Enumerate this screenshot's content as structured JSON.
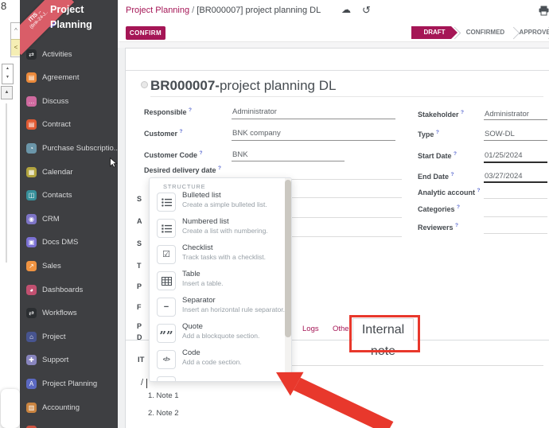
{
  "app": {
    "ribbon_line1": "ITIS ..",
    "ribbon_line2": "(Bnk-24-J..",
    "title_line1": "Project",
    "title_line2": "Planning"
  },
  "sidebar": {
    "items": [
      {
        "label": "Activities",
        "icon": "shuffle-icon",
        "color": "#2b2e31",
        "glyph": "⇄"
      },
      {
        "label": "Agreement",
        "icon": "document-icon",
        "color": "#ec8a3b",
        "glyph": "▤"
      },
      {
        "label": "Discuss",
        "icon": "chat-icon",
        "color": "#cf6a9f",
        "glyph": "…"
      },
      {
        "label": "Contract",
        "icon": "document-icon",
        "color": "#e05a33",
        "glyph": "▤"
      },
      {
        "label": "Purchase Subscriptio...",
        "icon": "clock-icon",
        "color": "#6b96a9",
        "glyph": "◔"
      },
      {
        "label": "Calendar",
        "icon": "calendar-icon",
        "color": "#b2a43f",
        "glyph": "▦"
      },
      {
        "label": "Contacts",
        "icon": "address-book-icon",
        "color": "#37909a",
        "glyph": "◫"
      },
      {
        "label": "CRM",
        "icon": "crm-icon",
        "color": "#7d74c6",
        "glyph": "◉"
      },
      {
        "label": "Docs DMS",
        "icon": "folder-icon",
        "color": "#7b71d3",
        "glyph": "▣"
      },
      {
        "label": "Sales",
        "icon": "chart-icon",
        "color": "#ef9341",
        "glyph": "↗"
      },
      {
        "label": "Dashboards",
        "icon": "gauge-icon",
        "color": "#c25070",
        "glyph": "◕"
      },
      {
        "label": "Workflows",
        "icon": "shuffle-icon",
        "color": "#2b2e31",
        "glyph": "⇄"
      },
      {
        "label": "Project",
        "icon": "building-icon",
        "color": "#47548f",
        "glyph": "⌂"
      },
      {
        "label": "Support",
        "icon": "support-icon",
        "color": "#8885be",
        "glyph": "✚"
      },
      {
        "label": "Project Planning",
        "icon": "planning-icon",
        "color": "#5b69c2",
        "glyph": "A"
      },
      {
        "label": "Accounting",
        "icon": "clipboard-icon",
        "color": "#ca8440",
        "glyph": "▥"
      },
      {
        "label": "",
        "icon": "app-icon",
        "color": "#cd5342",
        "glyph": ""
      }
    ]
  },
  "breadcrumb": {
    "parent": "Project Planning",
    "separator": "/",
    "current": "[BR000007] project planning DL"
  },
  "header_icons": {
    "cloud": "☁",
    "undo": "↺",
    "printer": "printer-icon"
  },
  "toolbar": {
    "confirm_label": "CONFIRM"
  },
  "statusbar": {
    "steps": [
      {
        "label": "DRAFT",
        "active": true
      },
      {
        "label": "CONFIRMED",
        "active": false
      },
      {
        "label": "APPROVED",
        "active": false
      }
    ]
  },
  "form": {
    "title_bold": "BR000007-",
    "title_rest": "project planning DL",
    "help_marker": "?",
    "left_fields": [
      {
        "label": "Responsible",
        "value": "Administrator"
      },
      {
        "label": "Customer",
        "value": "BNK company"
      },
      {
        "label": "Customer Code",
        "value": "BNK"
      },
      {
        "label": "Desired delivery date",
        "value": ""
      }
    ],
    "hidden_label_fragments": [
      "S",
      "A",
      "S",
      "T",
      "P",
      "F",
      "P",
      "D"
    ],
    "right_fields": [
      {
        "label": "Stakeholder",
        "value": "Administrator"
      },
      {
        "label": "Type",
        "value": "SOW-DL"
      },
      {
        "label": "Start Date",
        "value": "01/25/2024"
      },
      {
        "label": "End Date",
        "value": "03/27/2024"
      },
      {
        "label": "Analytic account",
        "value": ""
      },
      {
        "label": "Categories",
        "value": ""
      },
      {
        "label": "Reviewers",
        "value": ""
      }
    ]
  },
  "tabs": {
    "items": [
      {
        "label": "Logs",
        "active": false
      },
      {
        "label": "Other",
        "active": false
      },
      {
        "label": "Internal note",
        "active": true
      }
    ]
  },
  "notes": {
    "heading_fragment": "IT",
    "cursor_char": "/",
    "items": [
      "1. Note 1",
      "2. Note 2"
    ]
  },
  "powerbox": {
    "section": "STRUCTURE",
    "items": [
      {
        "name": "Bulleted list",
        "desc": "Create a simple bulleted list.",
        "icon": "bulleted-list-icon"
      },
      {
        "name": "Numbered list",
        "desc": "Create a list with numbering.",
        "icon": "numbered-list-icon"
      },
      {
        "name": "Checklist",
        "desc": "Track tasks with a checklist.",
        "icon": "checklist-icon"
      },
      {
        "name": "Table",
        "desc": "Insert a table.",
        "icon": "table-icon"
      },
      {
        "name": "Separator",
        "desc": "Insert an horizontal rule separator.",
        "icon": "separator-icon"
      },
      {
        "name": "Quote",
        "desc": "Add a blockquote section.",
        "icon": "quote-icon"
      },
      {
        "name": "Code",
        "desc": "Add a code section.",
        "icon": "code-icon"
      }
    ]
  },
  "artifacts": {
    "top_glyph": "8",
    "caret_up": "^",
    "caret_left": "<",
    "arrow_up": "▲",
    "arrow_down": "▼"
  },
  "colors": {
    "primary": "#a51656",
    "annotation": "#e8382c",
    "sidebar_bg": "#3e3f42",
    "ribbon": "#d95d68"
  }
}
